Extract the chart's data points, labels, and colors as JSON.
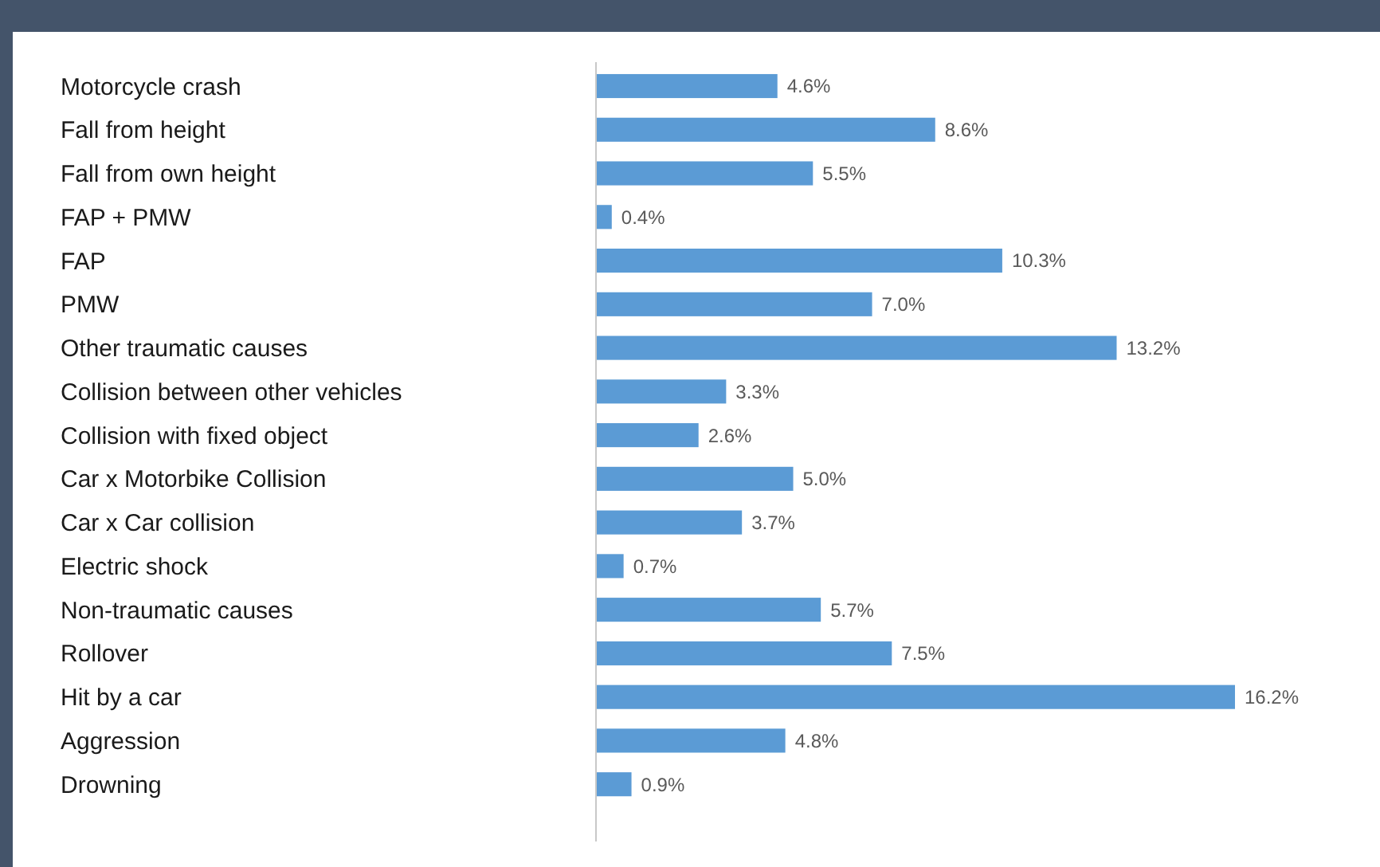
{
  "chart_data": {
    "type": "bar",
    "orientation": "horizontal",
    "categories": [
      "Motorcycle crash",
      "Fall from height",
      "Fall from own height",
      "FAP + PMW",
      "FAP",
      "PMW",
      "Other traumatic causes",
      "Collision between other vehicles",
      "Collision with fixed object",
      "Car x Motorbike Collision",
      "Car x Car collision",
      "Electric shock",
      "Non-traumatic causes",
      "Rollover",
      "Hit by a car",
      "Aggression",
      "Drowning"
    ],
    "values": [
      4.6,
      8.6,
      5.5,
      0.4,
      10.3,
      7.0,
      13.2,
      3.3,
      2.6,
      5.0,
      3.7,
      0.7,
      5.7,
      7.5,
      16.2,
      4.8,
      0.9
    ],
    "value_labels": [
      "4.6%",
      "8.6%",
      "5.5%",
      "0.4%",
      "10.3%",
      "7.0%",
      "13.2%",
      "3.3%",
      "2.6%",
      "5.0%",
      "3.7%",
      "0.7%",
      "5.7%",
      "7.5%",
      "16.2%",
      "4.8%",
      "0.9%"
    ],
    "color": "#5b9bd5"
  }
}
